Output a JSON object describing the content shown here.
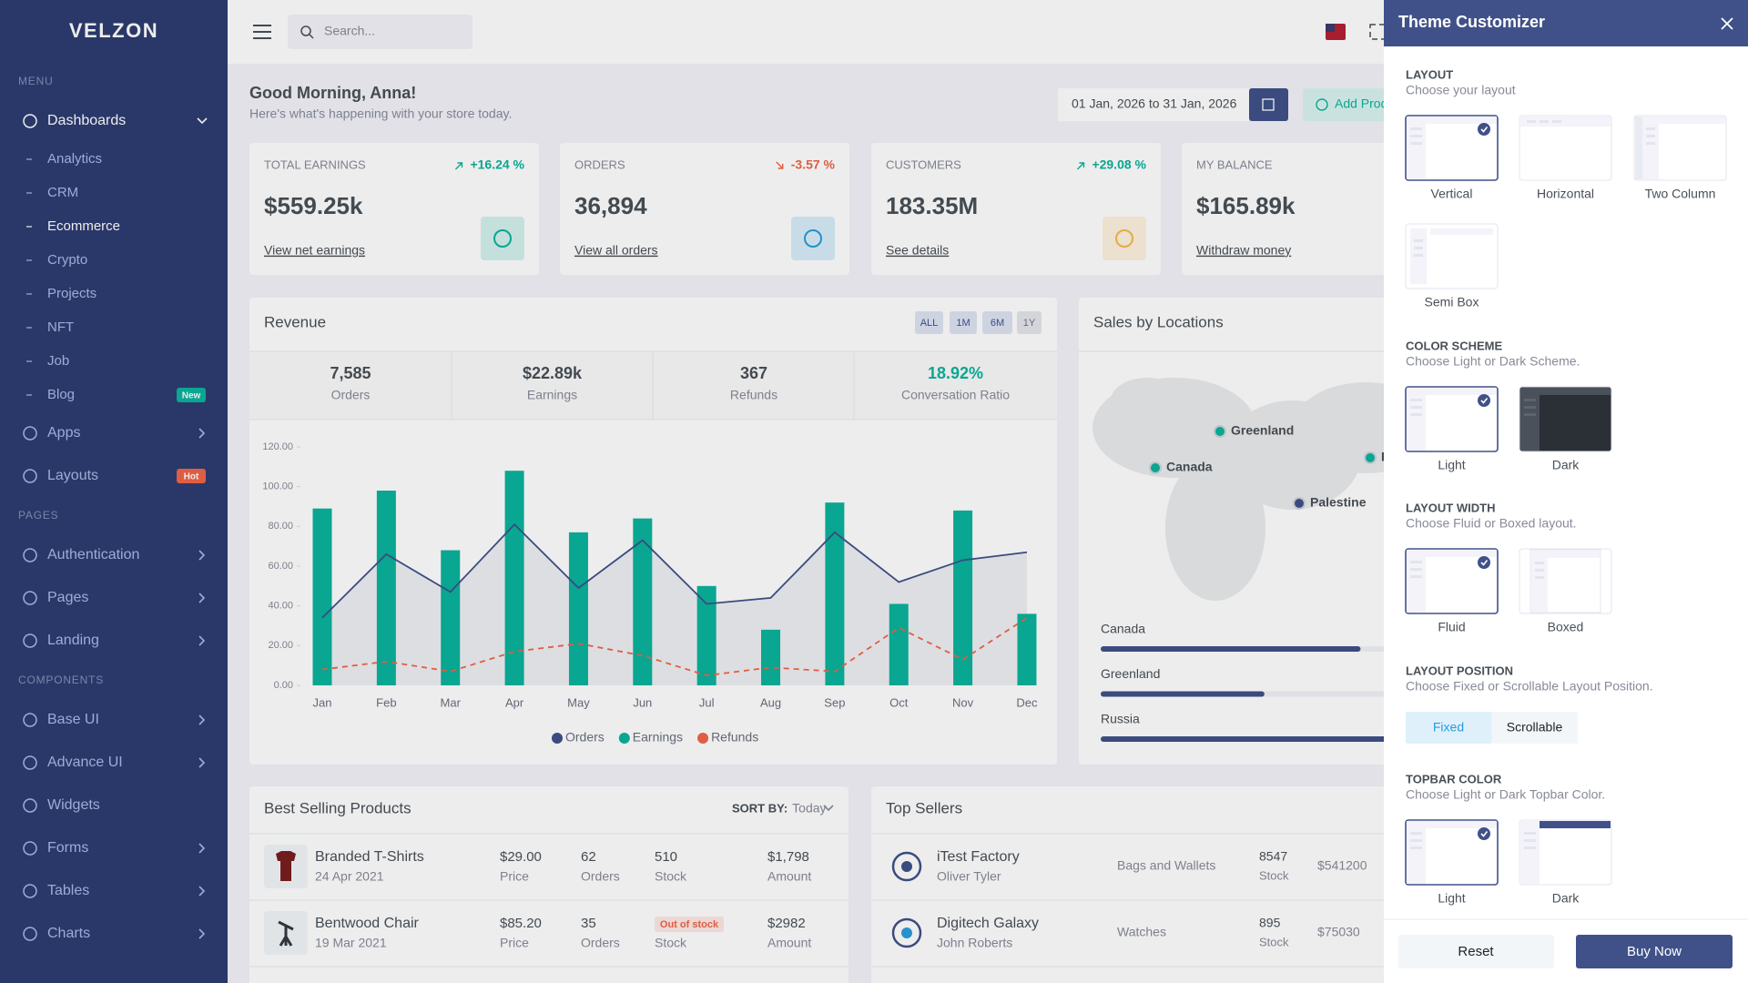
{
  "sidebar": {
    "brand": "VELZON",
    "sections": [
      {
        "title": "MENU",
        "items": [
          {
            "label": "Dashboards",
            "expandable": true,
            "open": true,
            "children": [
              {
                "label": "Analytics"
              },
              {
                "label": "CRM"
              },
              {
                "label": "Ecommerce",
                "active": true
              },
              {
                "label": "Crypto"
              },
              {
                "label": "Projects"
              },
              {
                "label": "NFT"
              },
              {
                "label": "Job"
              },
              {
                "label": "Blog",
                "badge": "New",
                "badge_color": "#0ab39c"
              }
            ]
          },
          {
            "label": "Apps",
            "expandable": true
          },
          {
            "label": "Layouts",
            "badge": "Hot",
            "badge_color": "#f06548"
          }
        ]
      },
      {
        "title": "PAGES",
        "items": [
          {
            "label": "Authentication",
            "expandable": true
          },
          {
            "label": "Pages",
            "expandable": true
          },
          {
            "label": "Landing",
            "expandable": true
          }
        ]
      },
      {
        "title": "COMPONENTS",
        "items": [
          {
            "label": "Base UI",
            "expandable": true
          },
          {
            "label": "Advance UI",
            "expandable": true
          },
          {
            "label": "Widgets"
          },
          {
            "label": "Forms",
            "expandable": true
          },
          {
            "label": "Tables",
            "expandable": true
          },
          {
            "label": "Charts",
            "expandable": true
          }
        ]
      }
    ]
  },
  "topbar": {
    "search_placeholder": "Search..."
  },
  "header": {
    "greeting": "Good Morning, Anna!",
    "subtitle": "Here's what's happening with your store today.",
    "date_range": "01 Jan, 2026 to 31 Jan, 2026",
    "add_button": "Add Product"
  },
  "stats": [
    {
      "label": "TOTAL EARNINGS",
      "change": "+16.24 %",
      "trend": "up",
      "value": "$559.25k",
      "link": "View net earnings",
      "color": "#0ab39c"
    },
    {
      "label": "ORDERS",
      "change": "-3.57 %",
      "trend": "down",
      "value": "36,894",
      "link": "View all orders",
      "color": "#299cdb"
    },
    {
      "label": "CUSTOMERS",
      "change": "+29.08 %",
      "trend": "up",
      "value": "183.35M",
      "link": "See details",
      "color": "#f7b84b"
    },
    {
      "label": "MY BALANCE",
      "value": "$165.89k",
      "link": "Withdraw money",
      "color": "#405189"
    }
  ],
  "revenue": {
    "title": "Revenue",
    "ranges": [
      "ALL",
      "1M",
      "6M",
      "1Y"
    ],
    "active_range": 3,
    "summary": [
      {
        "value": "7,585",
        "label": "Orders"
      },
      {
        "value": "$22.89k",
        "label": "Earnings"
      },
      {
        "value": "367",
        "label": "Refunds"
      },
      {
        "value": "18.92%",
        "label": "Conversation Ratio",
        "highlight": true
      }
    ]
  },
  "chart_data": {
    "type": "mixed",
    "categories": [
      "Jan",
      "Feb",
      "Mar",
      "Apr",
      "May",
      "Jun",
      "Jul",
      "Aug",
      "Sep",
      "Oct",
      "Nov",
      "Dec"
    ],
    "series": [
      {
        "name": "Orders",
        "type": "area",
        "color": "#405189",
        "values": [
          34,
          66,
          47,
          81,
          49,
          73,
          41,
          44,
          77,
          52,
          63,
          67
        ]
      },
      {
        "name": "Earnings",
        "type": "bar",
        "color": "#0ab39c",
        "values": [
          89,
          98,
          68,
          108,
          77,
          84,
          50,
          28,
          92,
          41,
          88,
          36
        ]
      },
      {
        "name": "Refunds",
        "type": "line",
        "dashed": true,
        "color": "#f06548",
        "values": [
          8,
          12,
          7,
          17,
          21,
          15,
          5,
          9,
          7,
          29,
          13,
          34
        ]
      }
    ],
    "ylim": [
      0,
      120
    ],
    "yticks": [
      {
        "value": 0,
        "label": "0.00"
      },
      {
        "value": 20,
        "label": "20.00"
      },
      {
        "value": 40,
        "label": "40.00"
      },
      {
        "value": 60,
        "label": "60.00"
      },
      {
        "value": 80,
        "label": "80.00"
      },
      {
        "value": 100,
        "label": "100.00"
      },
      {
        "value": 120,
        "label": "120.00"
      }
    ],
    "legend": "bottom"
  },
  "locations": {
    "title": "Sales by Locations",
    "markers": [
      {
        "name": "Greenland",
        "color": "#0ab39c"
      },
      {
        "name": "Canada",
        "color": "#0ab39c"
      },
      {
        "name": "Palestine",
        "color": "#405189"
      },
      {
        "name": "Russia",
        "color": "#0ab39c"
      }
    ],
    "progress": [
      {
        "name": "Canada",
        "value": 73
      },
      {
        "name": "Greenland",
        "value": 46
      },
      {
        "name": "Russia",
        "value": 85
      }
    ]
  },
  "best_selling": {
    "title": "Best Selling Products",
    "sort_label": "SORT BY:",
    "sort_value": "Today",
    "columns": {
      "price": "Price",
      "orders": "Orders",
      "stock": "Stock",
      "amount": "Amount"
    },
    "rows": [
      {
        "name": "Branded T-Shirts",
        "date": "24 Apr 2021",
        "price": "$29.00",
        "orders": "62",
        "stock": "510",
        "amount": "$1,798"
      },
      {
        "name": "Bentwood Chair",
        "date": "19 Mar 2021",
        "price": "$85.20",
        "orders": "35",
        "stock_badge": "Out of stock",
        "amount": "$2982"
      }
    ]
  },
  "top_sellers": {
    "title": "Top Sellers",
    "stock_label": "Stock",
    "rows": [
      {
        "name": "iTest Factory",
        "person": "Oliver Tyler",
        "category": "Bags and Wallets",
        "stock": "8547",
        "amount": "$541200"
      },
      {
        "name": "Digitech Galaxy",
        "person": "John Roberts",
        "category": "Watches",
        "stock": "895",
        "amount": "$75030"
      }
    ]
  },
  "customizer": {
    "title": "Theme Customizer",
    "sections": [
      {
        "title": "LAYOUT",
        "description": "Choose your layout",
        "options": [
          {
            "label": "Vertical",
            "selected": true
          },
          {
            "label": "Horizontal"
          },
          {
            "label": "Two Column"
          },
          {
            "label": "Semi Box"
          }
        ]
      },
      {
        "title": "COLOR SCHEME",
        "description": "Choose Light or Dark Scheme.",
        "options": [
          {
            "label": "Light",
            "selected": true
          },
          {
            "label": "Dark"
          }
        ]
      },
      {
        "title": "LAYOUT WIDTH",
        "description": "Choose Fluid or Boxed layout.",
        "options": [
          {
            "label": "Fluid",
            "selected": true
          },
          {
            "label": "Boxed"
          }
        ]
      },
      {
        "title": "LAYOUT POSITION",
        "description": "Choose Fixed or Scrollable Layout Position.",
        "buttons": [
          {
            "label": "Fixed",
            "selected": true
          },
          {
            "label": "Scrollable"
          }
        ]
      },
      {
        "title": "TOPBAR COLOR",
        "description": "Choose Light or Dark Topbar Color.",
        "options": [
          {
            "label": "Light",
            "selected": true
          },
          {
            "label": "Dark"
          }
        ]
      }
    ],
    "reset": "Reset",
    "buy": "Buy Now"
  }
}
